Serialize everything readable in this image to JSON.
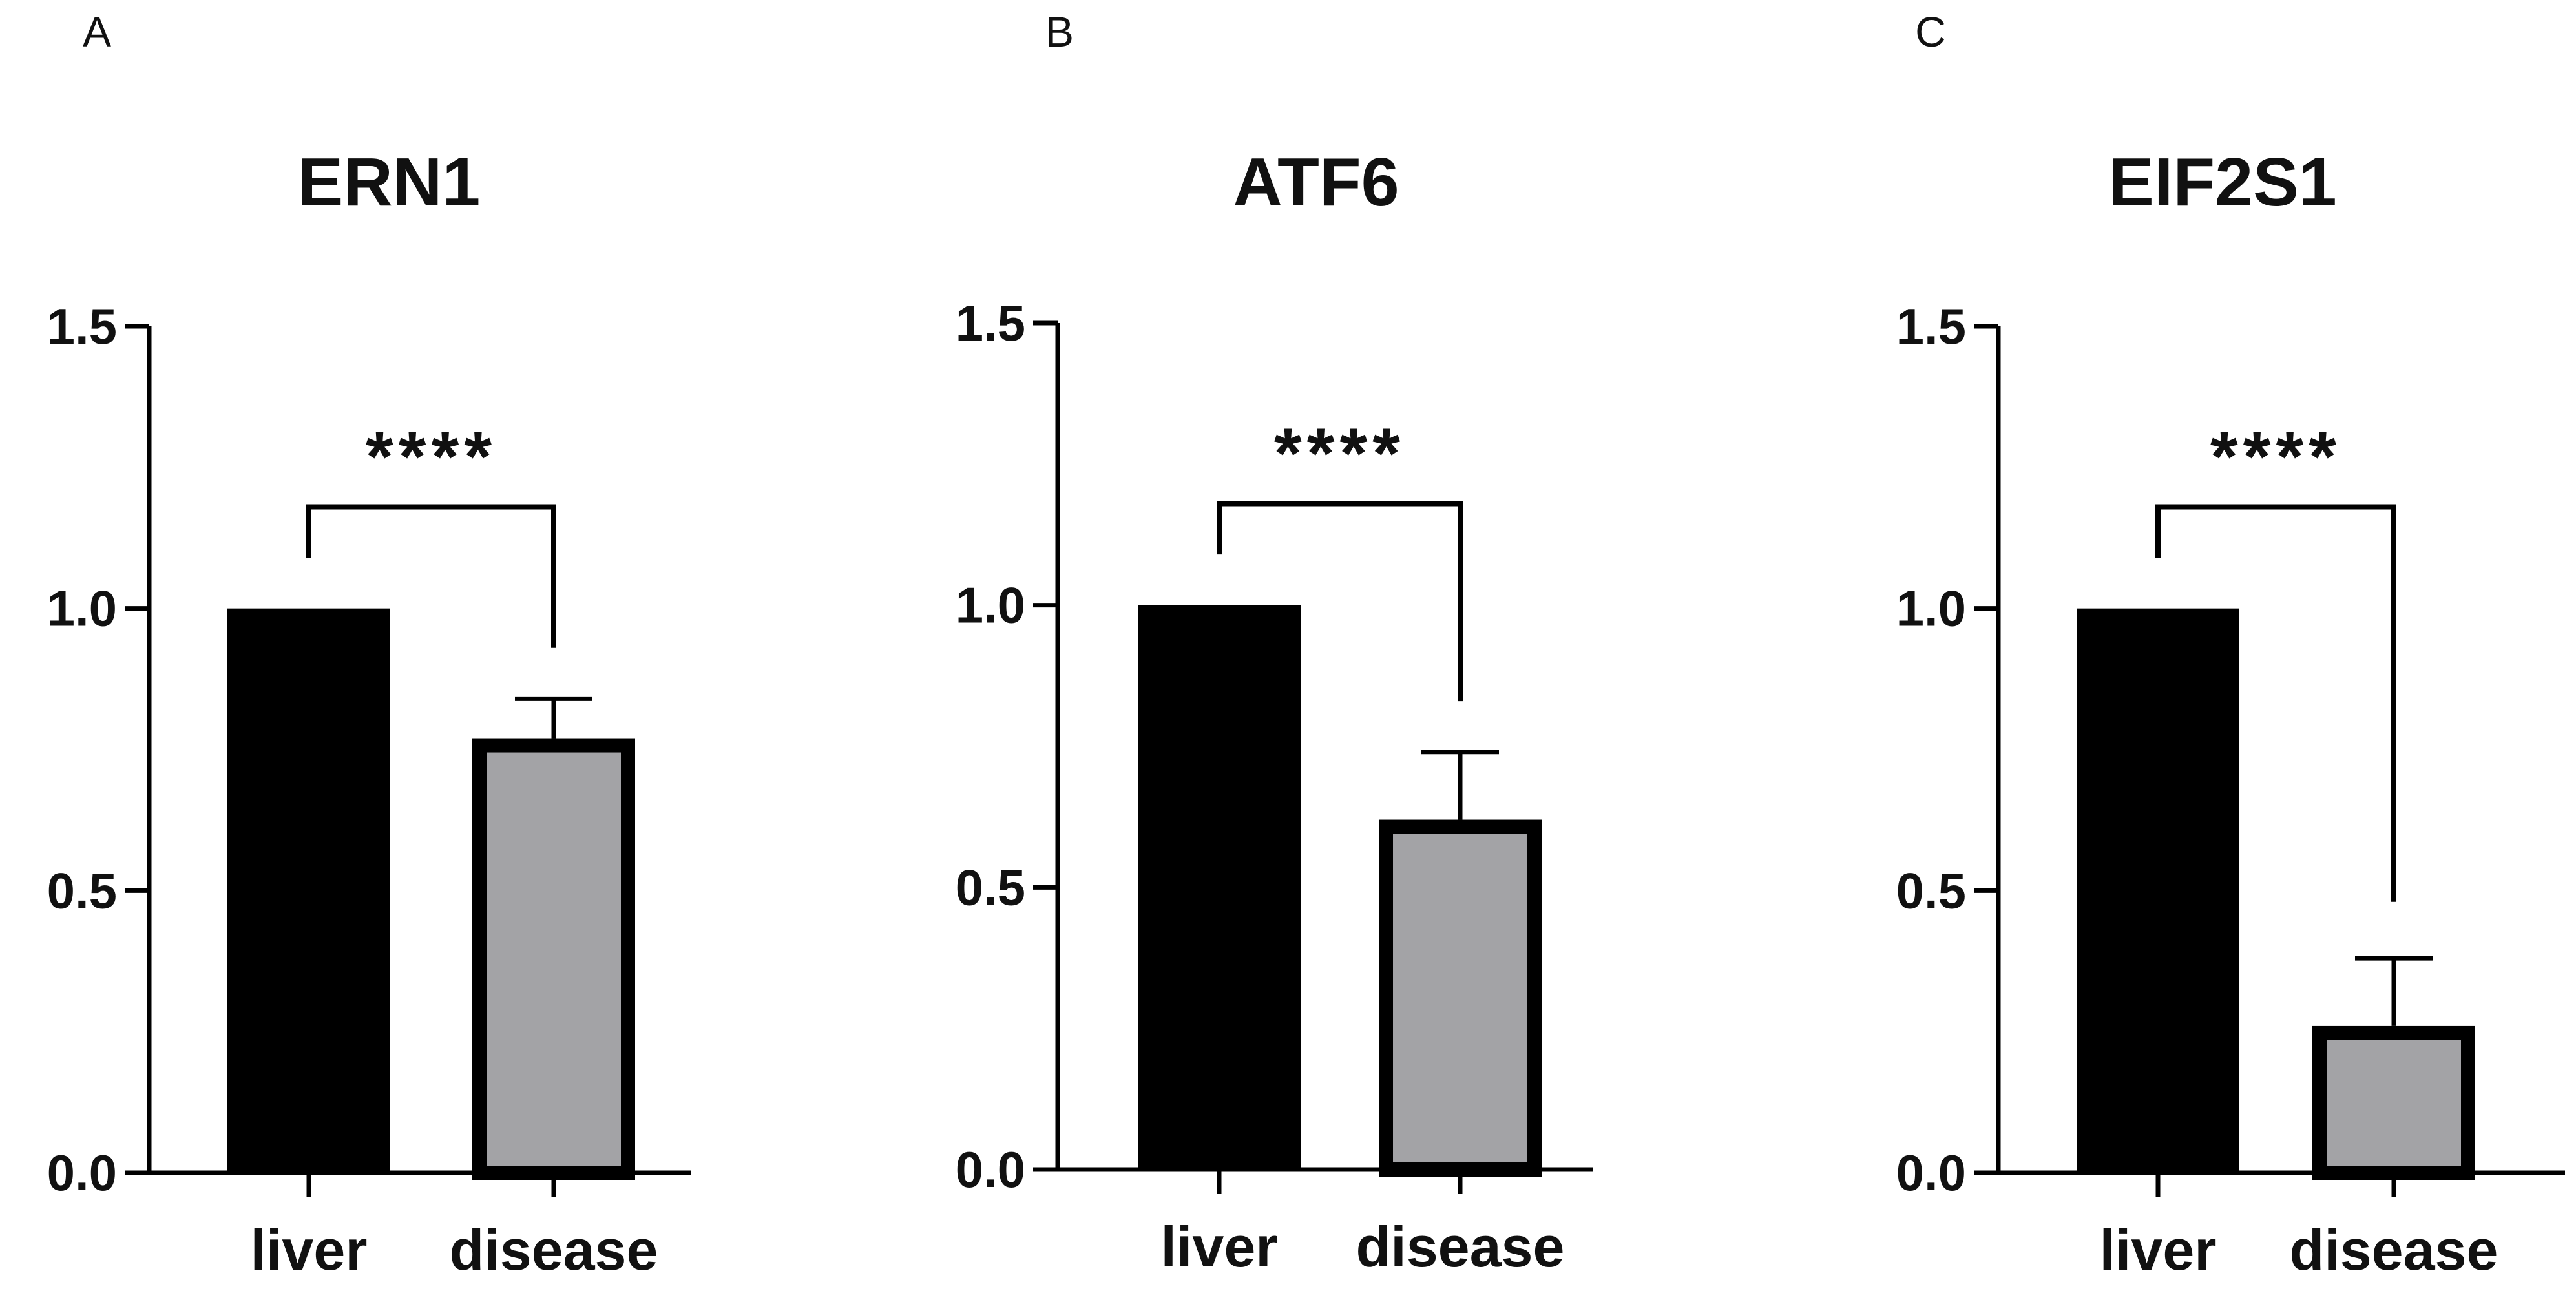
{
  "chart_data": [
    {
      "panel": "A",
      "type": "bar",
      "title": "ERN1",
      "categories": [
        "liver",
        "disease"
      ],
      "values": [
        1.0,
        0.77
      ],
      "error": [
        0,
        0.07
      ],
      "colors": [
        "#000000",
        "#a3a3a6"
      ],
      "ylim": [
        0,
        1.5
      ],
      "yticks": [
        "0.0",
        "0.5",
        "1.0",
        "1.5"
      ],
      "ytick_values": [
        0,
        0.5,
        1.0,
        1.5
      ],
      "significance": "****",
      "bracket_y": 1.18,
      "bracket_left_end": 1.09,
      "bracket_right_end": 0.93,
      "xlabel": "",
      "ylabel": ""
    },
    {
      "panel": "B",
      "type": "bar",
      "title": "ATF6",
      "categories": [
        "liver",
        "disease"
      ],
      "values": [
        1.0,
        0.62
      ],
      "error": [
        0,
        0.12
      ],
      "colors": [
        "#000000",
        "#a3a3a6"
      ],
      "ylim": [
        0,
        1.5
      ],
      "yticks": [
        "0.0",
        "0.5",
        "1.0",
        "1.5"
      ],
      "ytick_values": [
        0,
        0.5,
        1.0,
        1.5
      ],
      "significance": "****",
      "bracket_y": 1.18,
      "bracket_left_end": 1.09,
      "bracket_right_end": 0.83,
      "xlabel": "",
      "ylabel": ""
    },
    {
      "panel": "C",
      "type": "bar",
      "title": "EIF2S1",
      "categories": [
        "liver",
        "disease"
      ],
      "values": [
        1.0,
        0.26
      ],
      "error": [
        0,
        0.12
      ],
      "colors": [
        "#000000",
        "#a3a3a6"
      ],
      "ylim": [
        0,
        1.5
      ],
      "yticks": [
        "0.0",
        "0.5",
        "1.0",
        "1.5"
      ],
      "ytick_values": [
        0,
        0.5,
        1.0,
        1.5
      ],
      "significance": "****",
      "bracket_y": 1.18,
      "bracket_left_end": 1.09,
      "bracket_right_end": 0.48,
      "xlabel": "",
      "ylabel": ""
    }
  ]
}
